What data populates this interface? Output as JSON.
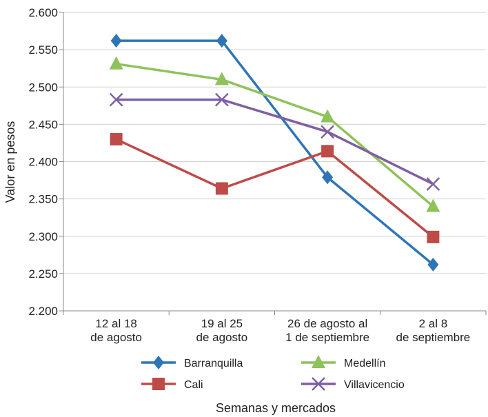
{
  "chart_data": {
    "type": "line",
    "categories": [
      [
        "12 al 18",
        "de agosto"
      ],
      [
        "19 al 25",
        "de agosto"
      ],
      [
        "26 de agosto al",
        "1 de septiembre"
      ],
      [
        "2 al 8",
        "de septiembre"
      ]
    ],
    "series": [
      {
        "name": "Barranquilla",
        "values": [
          2562,
          2562,
          2379,
          2262
        ],
        "color": "#2e75b6",
        "marker": "diamond"
      },
      {
        "name": "Medellín",
        "values": [
          2531,
          2510,
          2460,
          2340
        ],
        "color": "#8fc25a",
        "marker": "triangle"
      },
      {
        "name": "Cali",
        "values": [
          2430,
          2364,
          2414,
          2299
        ],
        "color": "#be4b48",
        "marker": "square"
      },
      {
        "name": "Villavicencio",
        "values": [
          2483,
          2483,
          2440,
          2370
        ],
        "color": "#7e5fa4",
        "marker": "x"
      }
    ],
    "ylim": [
      2200,
      2600
    ],
    "yticks": [
      "2.200",
      "2.250",
      "2.300",
      "2.350",
      "2.400",
      "2.450",
      "2.500",
      "2.550",
      "2.600"
    ],
    "ylabel": "Valor en pesos",
    "xlabel": "Semanas y mercados",
    "grid": true,
    "legend_position": "bottom"
  }
}
